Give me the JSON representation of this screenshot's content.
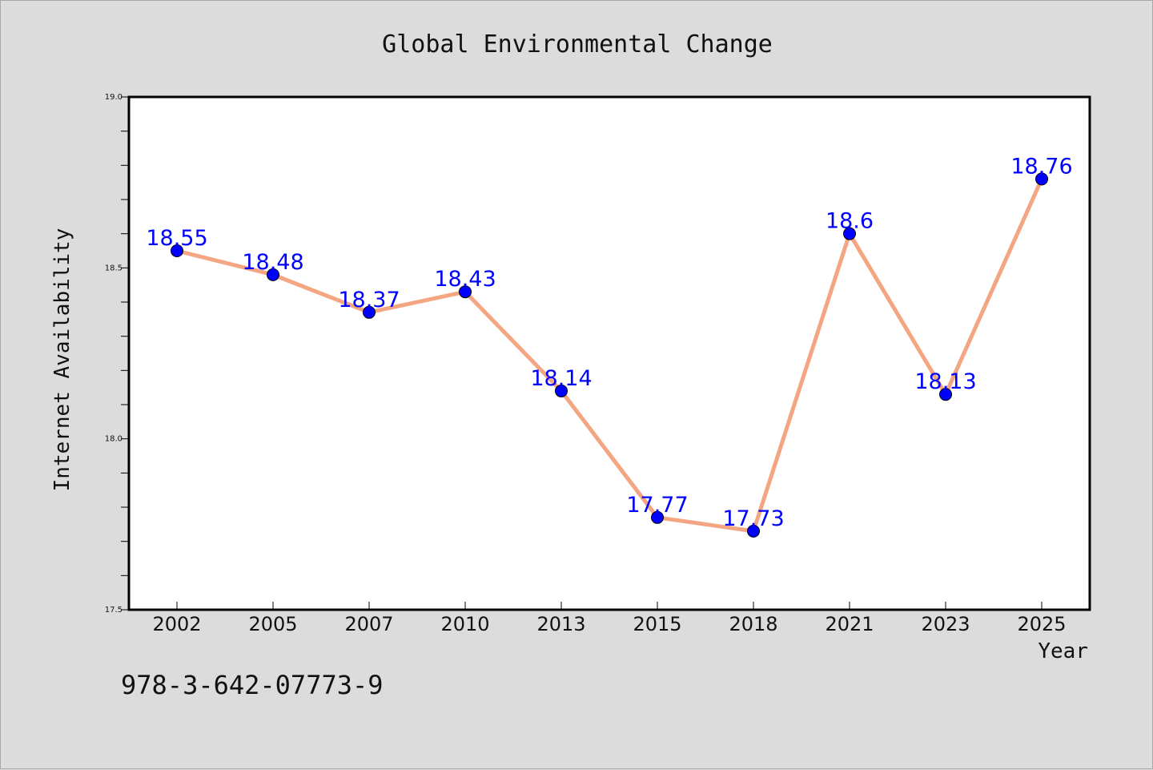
{
  "colors": {
    "background": "#dcdcdc",
    "plot_background": "#ffffff",
    "line": "#f4a582",
    "marker": "#0000ff",
    "label": "#0000ff"
  },
  "footer_code": "978-3-642-07773-9",
  "chart_data": {
    "type": "line",
    "title": "Global Environmental Change",
    "xlabel": "Year",
    "ylabel": "Internet Availability",
    "categories": [
      "2002",
      "2005",
      "2007",
      "2010",
      "2013",
      "2015",
      "2018",
      "2021",
      "2023",
      "2025"
    ],
    "series": [
      {
        "values": [
          18.55,
          18.48,
          18.37,
          18.43,
          18.14,
          17.77,
          17.73,
          18.6,
          18.13,
          18.76
        ],
        "labels": [
          "18.55",
          "18.48",
          "18.37",
          "18.43",
          "18.14",
          "17.77",
          "17.73",
          "18.6",
          "18.13",
          "18.76"
        ]
      }
    ],
    "ylim": [
      17.5,
      19.0
    ],
    "yticks": [
      "17.5",
      "18.0",
      "18.5",
      "19.0"
    ],
    "grid": false,
    "legend": "none"
  }
}
